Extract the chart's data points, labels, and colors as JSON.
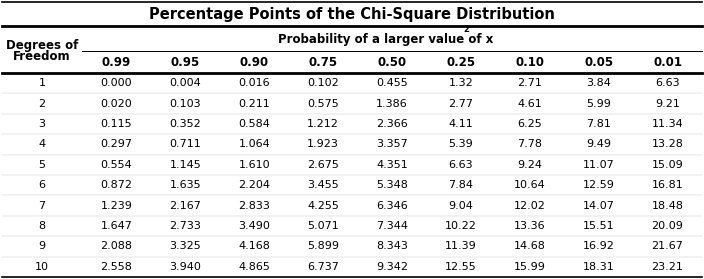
{
  "title": "Percentage Points of the Chi-Square Distribution",
  "col_header_row1": "Probability of a larger value of x ",
  "col_header_row1_sup": "2",
  "col_header_left1": "Degrees of",
  "col_header_left2": "Freedom",
  "prob_cols": [
    "0.99",
    "0.95",
    "0.90",
    "0.75",
    "0.50",
    "0.25",
    "0.10",
    "0.05",
    "0.01"
  ],
  "rows": [
    [
      "1",
      "0.000",
      "0.004",
      "0.016",
      "0.102",
      "0.455",
      "1.32",
      "2.71",
      "3.84",
      "6.63"
    ],
    [
      "2",
      "0.020",
      "0.103",
      "0.211",
      "0.575",
      "1.386",
      "2.77",
      "4.61",
      "5.99",
      "9.21"
    ],
    [
      "3",
      "0.115",
      "0.352",
      "0.584",
      "1.212",
      "2.366",
      "4.11",
      "6.25",
      "7.81",
      "11.34"
    ],
    [
      "4",
      "0.297",
      "0.711",
      "1.064",
      "1.923",
      "3.357",
      "5.39",
      "7.78",
      "9.49",
      "13.28"
    ],
    [
      "5",
      "0.554",
      "1.145",
      "1.610",
      "2.675",
      "4.351",
      "6.63",
      "9.24",
      "11.07",
      "15.09"
    ],
    [
      "6",
      "0.872",
      "1.635",
      "2.204",
      "3.455",
      "5.348",
      "7.84",
      "10.64",
      "12.59",
      "16.81"
    ],
    [
      "7",
      "1.239",
      "2.167",
      "2.833",
      "4.255",
      "6.346",
      "9.04",
      "12.02",
      "14.07",
      "18.48"
    ],
    [
      "8",
      "1.647",
      "2.733",
      "3.490",
      "5.071",
      "7.344",
      "10.22",
      "13.36",
      "15.51",
      "20.09"
    ],
    [
      "9",
      "2.088",
      "3.325",
      "4.168",
      "5.899",
      "8.343",
      "11.39",
      "14.68",
      "16.92",
      "21.67"
    ],
    [
      "10",
      "2.558",
      "3.940",
      "4.865",
      "6.737",
      "9.342",
      "12.55",
      "15.99",
      "18.31",
      "23.21"
    ]
  ],
  "bg_color": "#ffffff",
  "text_color": "#000000",
  "thick_lw": 2.0,
  "thin_lw": 0.7,
  "title_fontsize": 10.5,
  "header_fontsize": 8.5,
  "data_fontsize": 8.0
}
